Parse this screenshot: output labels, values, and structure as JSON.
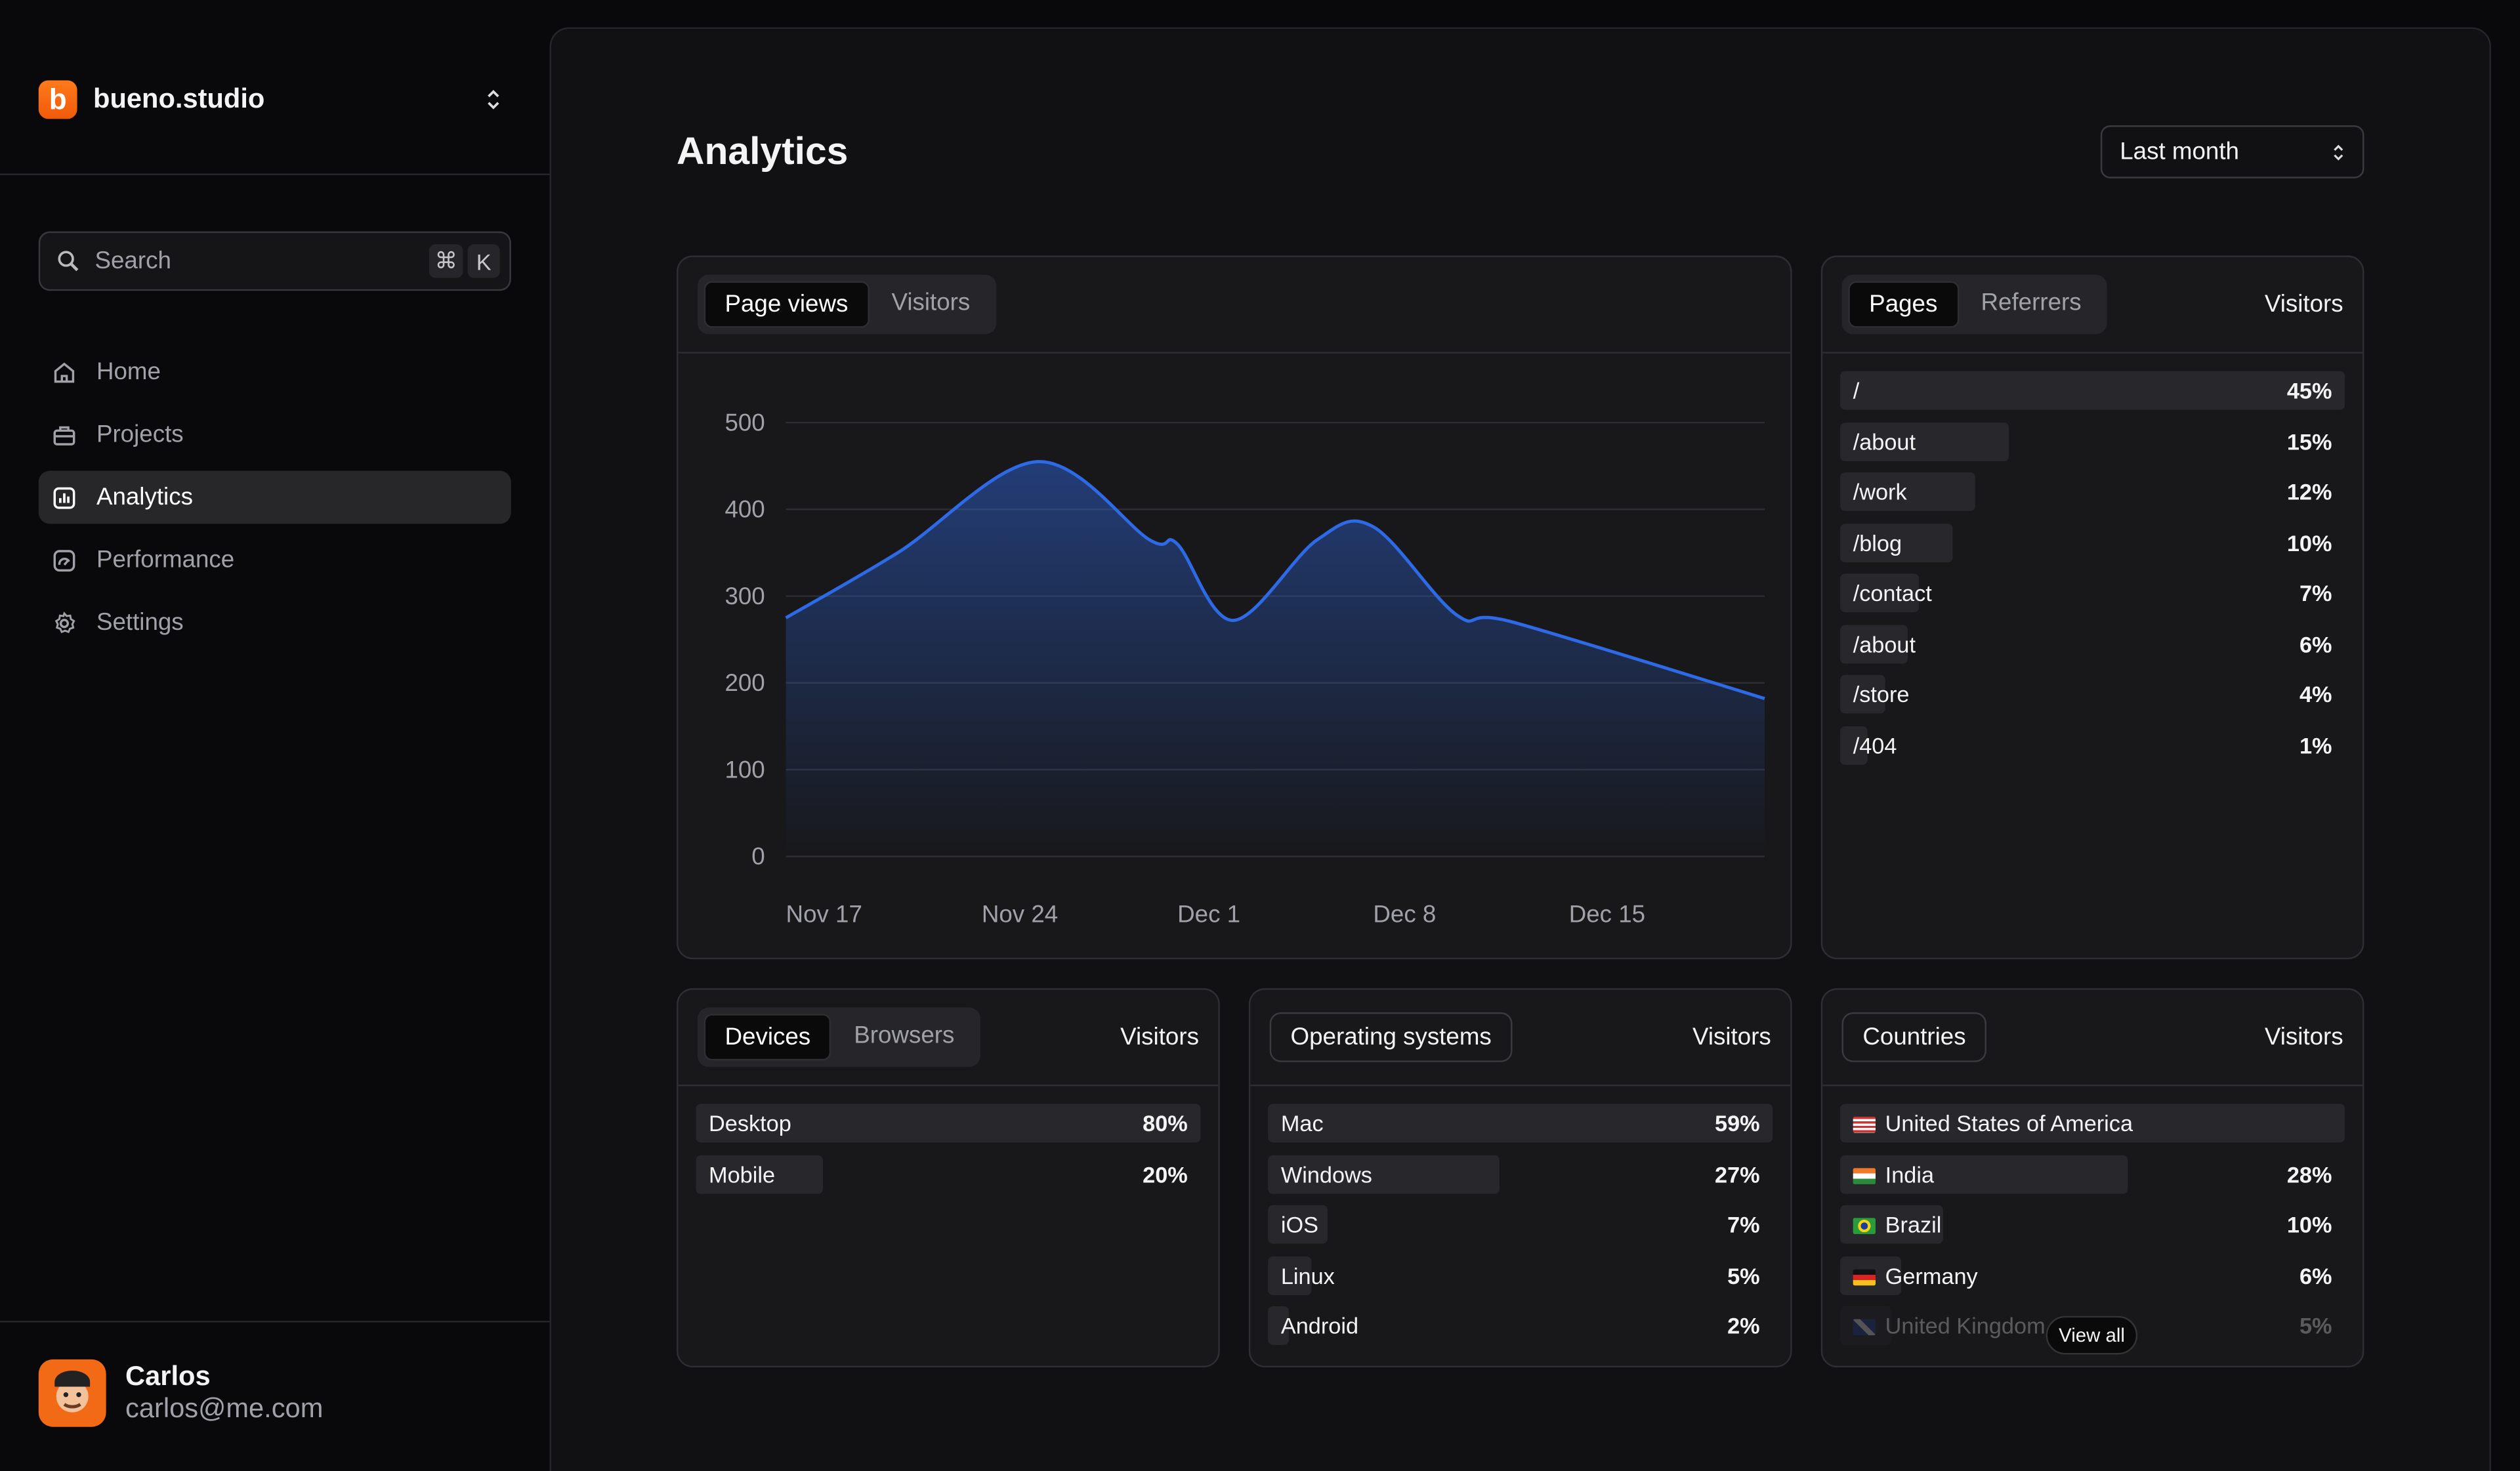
{
  "sidebar": {
    "brand": "bueno.studio",
    "logo_letter": "b",
    "search": {
      "placeholder": "Search",
      "shortcut_mod": "⌘",
      "shortcut_key": "K"
    },
    "items": [
      {
        "label": "Home",
        "icon": "home-icon"
      },
      {
        "label": "Projects",
        "icon": "briefcase-icon"
      },
      {
        "label": "Analytics",
        "icon": "chart-icon",
        "active": true
      },
      {
        "label": "Performance",
        "icon": "gauge-icon"
      },
      {
        "label": "Settings",
        "icon": "gear-icon"
      }
    ],
    "user": {
      "name": "Carlos",
      "email": "carlos@me.com"
    }
  },
  "header": {
    "title": "Analytics",
    "range": "Last month"
  },
  "traffic": {
    "tabs": [
      "Page views",
      "Visitors"
    ],
    "active_tab": "Page views"
  },
  "chart_data": {
    "type": "area",
    "accent": "#2f6ae6",
    "ylim": [
      0,
      500
    ],
    "y_ticks": [
      "0",
      "100",
      "200",
      "300",
      "400",
      "500"
    ],
    "x_ticks": [
      "Nov 17",
      "Nov 24",
      "Dec 1",
      "Dec 8",
      "Dec 15"
    ],
    "grid": true,
    "points": [
      {
        "x": "Nov 17",
        "y": 275
      },
      {
        "x": "Nov 21",
        "y": 350
      },
      {
        "x": "Nov 26",
        "y": 455
      },
      {
        "x": "Nov 30",
        "y": 365
      },
      {
        "x": "Dec 1",
        "y": 360
      },
      {
        "x": "Dec 3",
        "y": 272
      },
      {
        "x": "Dec 6",
        "y": 365
      },
      {
        "x": "Dec 8",
        "y": 380
      },
      {
        "x": "Dec 11",
        "y": 278
      },
      {
        "x": "Dec 13",
        "y": 270
      },
      {
        "x": "Dec 22",
        "y": 182
      }
    ]
  },
  "pages": {
    "tabs": [
      "Pages",
      "Referrers"
    ],
    "column": "Visitors",
    "rows": [
      {
        "label": "/",
        "value": "45%",
        "pct": 45
      },
      {
        "label": "/about",
        "value": "15%",
        "pct": 15
      },
      {
        "label": "/work",
        "value": "12%",
        "pct": 12
      },
      {
        "label": "/blog",
        "value": "10%",
        "pct": 10
      },
      {
        "label": "/contact",
        "value": "7%",
        "pct": 7
      },
      {
        "label": "/about",
        "value": "6%",
        "pct": 6
      },
      {
        "label": "/store",
        "value": "4%",
        "pct": 4
      },
      {
        "label": "/404",
        "value": "1%",
        "pct": 1
      }
    ]
  },
  "devices": {
    "tabs": [
      "Devices",
      "Browsers"
    ],
    "column": "Visitors",
    "rows": [
      {
        "label": "Desktop",
        "value": "80%",
        "pct": 80
      },
      {
        "label": "Mobile",
        "value": "20%",
        "pct": 20
      }
    ]
  },
  "os": {
    "title": "Operating systems",
    "column": "Visitors",
    "rows": [
      {
        "label": "Mac",
        "value": "59%",
        "pct": 59
      },
      {
        "label": "Windows",
        "value": "27%",
        "pct": 27
      },
      {
        "label": "iOS",
        "value": "7%",
        "pct": 7
      },
      {
        "label": "Linux",
        "value": "5%",
        "pct": 5
      },
      {
        "label": "Android",
        "value": "2%",
        "pct": 2
      }
    ]
  },
  "countries": {
    "title": "Countries",
    "column": "Visitors",
    "view_all": "View all",
    "rows": [
      {
        "label": "United States of America",
        "value": "",
        "pct": 49,
        "flag": "us"
      },
      {
        "label": "India",
        "value": "28%",
        "pct": 28,
        "flag": "in"
      },
      {
        "label": "Brazil",
        "value": "10%",
        "pct": 10,
        "flag": "br"
      },
      {
        "label": "Germany",
        "value": "6%",
        "pct": 6,
        "flag": "de"
      },
      {
        "label": "United Kingdom",
        "value": "5%",
        "pct": 5,
        "flag": "gb"
      }
    ]
  }
}
